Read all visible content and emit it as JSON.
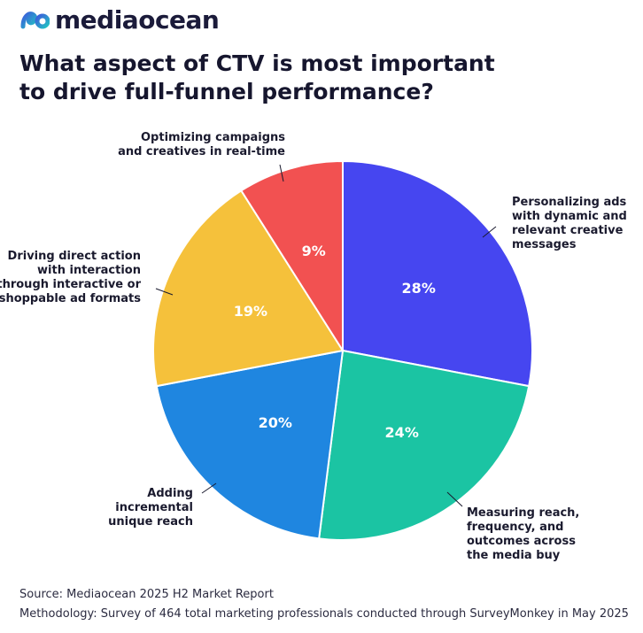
{
  "brand": {
    "name": "mediaocean"
  },
  "title_lines": [
    "What aspect of CTV is most important",
    "to drive full-funnel performance?"
  ],
  "chart_data": {
    "type": "pie",
    "title": "What aspect of CTV is most important to drive full-funnel performance?",
    "start_angle_deg": 0,
    "direction": "clockwise",
    "slices": [
      {
        "label_lines": [
          "Personalizing ads",
          "with dynamic and",
          "relevant creative",
          "messages"
        ],
        "value": 28,
        "display": "28%",
        "color": "#4646f0"
      },
      {
        "label_lines": [
          "Measuring reach,",
          "frequency, and",
          "outcomes across",
          "the media buy"
        ],
        "value": 24,
        "display": "24%",
        "color": "#1bc4a3"
      },
      {
        "label_lines": [
          "Adding",
          "incremental",
          "unique reach"
        ],
        "value": 20,
        "display": "20%",
        "color": "#1f86e0"
      },
      {
        "label_lines": [
          "Driving direct action",
          "with interaction",
          "through interactive or",
          "shoppable ad formats"
        ],
        "value": 19,
        "display": "19%",
        "color": "#f5c13b"
      },
      {
        "label_lines": [
          "Optimizing campaigns",
          "and creatives in real-time"
        ],
        "value": 9,
        "display": "9%",
        "color": "#f25151"
      }
    ]
  },
  "footer": {
    "source": "Source: Mediaocean 2025 H2 Market Report",
    "methodology": "Methodology: Survey of 464 total marketing professionals conducted through SurveyMonkey in May 2025"
  },
  "colors": {
    "logo_gradient_start": "#3b5bdb",
    "logo_gradient_end": "#22c1c3",
    "title": "#16162e",
    "label_text": "#1a1a2e",
    "leader_line": "#1a1a2e",
    "percent_text": "#ffffff"
  }
}
